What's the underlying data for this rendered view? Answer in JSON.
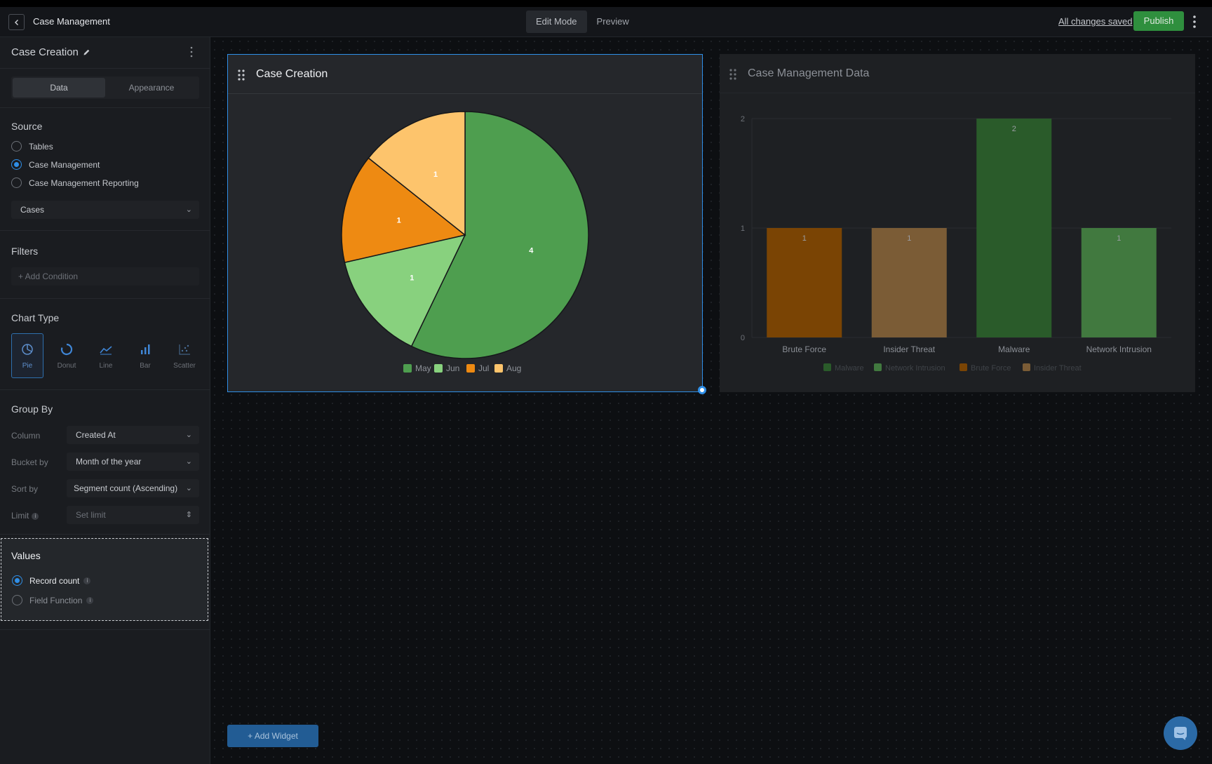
{
  "topbar": {
    "title": "Case Management",
    "modes": [
      "Edit Mode",
      "Preview"
    ],
    "saved_text": "All changes saved",
    "publish_label": "Publish"
  },
  "sidebar": {
    "widget_name": "Case Creation",
    "tabs": [
      "Data",
      "Appearance"
    ],
    "source": {
      "title": "Source",
      "options": [
        "Tables",
        "Case Management",
        "Case Management Reporting"
      ],
      "selected": "Case Management",
      "table_select": "Cases"
    },
    "filters": {
      "title": "Filters",
      "add_condition": "+ Add Condition"
    },
    "chart_type": {
      "title": "Chart Type",
      "types": [
        "Pie",
        "Donut",
        "Line",
        "Bar",
        "Scatter"
      ],
      "selected": "Pie"
    },
    "group_by": {
      "title": "Group By",
      "column_label": "Column",
      "column_value": "Created At",
      "bucket_label": "Bucket by",
      "bucket_value": "Month of the year",
      "sort_label": "Sort by",
      "sort_value": "Segment count (Ascending)",
      "limit_label": "Limit",
      "limit_placeholder": "Set limit"
    },
    "values": {
      "title": "Values",
      "options": [
        "Record count",
        "Field Function"
      ],
      "selected": "Record count"
    }
  },
  "canvas": {
    "add_widget_label": "+ Add Widget"
  },
  "colors": {
    "may": "#4e9e4f",
    "jun": "#88d17e",
    "jul": "#ee8a12",
    "aug": "#fdc46c",
    "bar_brute": "#7a4404",
    "bar_insider": "#7b5c36",
    "bar_malware": "#2a5b2a",
    "bar_network": "#41793f",
    "accent": "#2f8fe8",
    "publish": "#2f8f3e"
  },
  "chart_data": [
    {
      "type": "pie",
      "title": "Case Creation",
      "categories": [
        "May",
        "Jun",
        "Jul",
        "Aug"
      ],
      "values": [
        4,
        1,
        1,
        1
      ],
      "legend": "bottom"
    },
    {
      "type": "bar",
      "title": "Case Management Data",
      "categories": [
        "Brute Force",
        "Insider Threat",
        "Malware",
        "Network Intrusion"
      ],
      "values": [
        1,
        1,
        2,
        1
      ],
      "ylim": [
        0,
        2
      ],
      "yticks": [
        0,
        1,
        2
      ],
      "legend_entries": [
        "Malware",
        "Network Intrusion",
        "Brute Force",
        "Insider Threat"
      ],
      "legend": "bottom",
      "grid": true
    }
  ]
}
